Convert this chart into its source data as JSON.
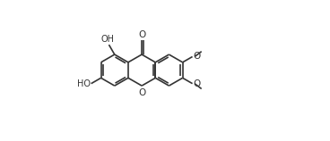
{
  "bg_color": "#ffffff",
  "line_color": "#333333",
  "line_width": 1.2,
  "font_size": 7.0,
  "xlim": [
    0,
    9.2
  ],
  "ylim": [
    0,
    5.0
  ]
}
